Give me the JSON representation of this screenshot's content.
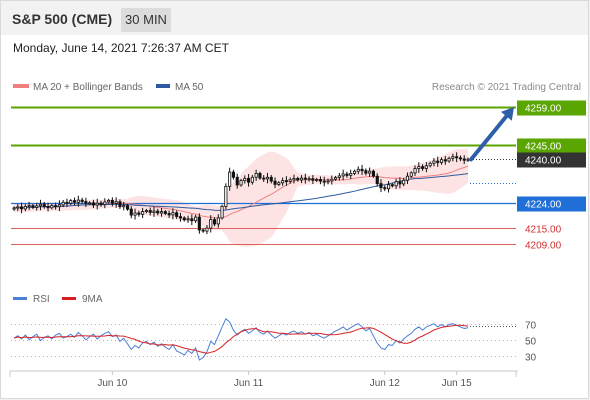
{
  "header": {
    "symbol": "S&P 500 (CME)",
    "timeframe": "30 MIN",
    "datetime": "Monday, June 14, 2021 7:26:37 AM CET"
  },
  "colors": {
    "resistance": "#5aa500",
    "support": "#1f6fd6",
    "ma20": "#f08080",
    "ma50": "#2d5aa0",
    "bollinger": "#fde3e3",
    "candle": "#111111",
    "price_tag": "#333333",
    "target_arrow": "#2f5fa8",
    "rsi": "#4a7fd6",
    "rsi_ma": "#d62020"
  },
  "chart_data": [
    {
      "type": "candlestick",
      "legend": {
        "ma20": "MA 20 + Bollinger Bands",
        "ma50": "MA 50"
      },
      "attribution": "Research © 2021 Trading Central",
      "current_price": 4240.0,
      "levels": [
        {
          "value": 4259.0,
          "label": "4259.00",
          "kind": "resistance"
        },
        {
          "value": 4245.0,
          "label": "4245.00",
          "kind": "resistance"
        },
        {
          "value": 4224.0,
          "label": "4224.00",
          "kind": "pivot"
        },
        {
          "value": 4215.0,
          "label": "4215.00",
          "kind": "support"
        },
        {
          "value": 4209.0,
          "label": "4209.00",
          "kind": "support"
        }
      ],
      "ylim": [
        4196,
        4263
      ],
      "x_ticks": [
        "Jun 10",
        "Jun 11",
        "Jun 12",
        "Jun 15"
      ],
      "closes": [
        4222.2,
        4222.6,
        4221.9,
        4222.8,
        4223.1,
        4222.4,
        4223.0,
        4223.6,
        4222.8,
        4222.3,
        4223.1,
        4222.7,
        4223.4,
        4224.3,
        4223.9,
        4224.9,
        4224.3,
        4225.1,
        4224.6,
        4223.9,
        4224.1,
        4223.3,
        4224.0,
        4223.5,
        4224.4,
        4225.0,
        4223.9,
        4224.5,
        4222.7,
        4223.1,
        4221.8,
        4219.6,
        4220.4,
        4219.9,
        4220.9,
        4221.3,
        4220.6,
        4221.1,
        4220.4,
        4220.9,
        4220.2,
        4219.7,
        4220.5,
        4219.1,
        4218.6,
        4217.9,
        4218.3,
        4217.6,
        4218.9,
        4214.2,
        4213.8,
        4214.9,
        4218.0,
        4216.4,
        4218.6,
        4222.8,
        4230.1,
        4235.3,
        4233.4,
        4230.6,
        4232.2,
        4233.0,
        4231.6,
        4233.4,
        4234.8,
        4233.1,
        4232.8,
        4233.4,
        4232.0,
        4230.8,
        4231.4,
        4232.2,
        4231.9,
        4232.5,
        4233.0,
        4232.4,
        4233.1,
        4232.7,
        4232.9,
        4232.3,
        4232.6,
        4232.0,
        4231.7,
        4232.1,
        4232.7,
        4233.3,
        4233.9,
        4234.6,
        4234.1,
        4234.8,
        4235.6,
        4236.3,
        4235.8,
        4234.9,
        4235.6,
        4233.8,
        4231.1,
        4229.6,
        4229.2,
        4230.7,
        4230.3,
        4231.8,
        4231.0,
        4232.3,
        4233.8,
        4235.0,
        4236.6,
        4237.3,
        4236.6,
        4237.6,
        4238.5,
        4239.3,
        4238.8,
        4239.8,
        4239.3,
        4240.3,
        4240.9,
        4240.5,
        4240.1,
        4239.6,
        4240.0
      ],
      "rsi": {
        "legend": {
          "rsi": "RSI",
          "ma": "9MA"
        },
        "levels": [
          70,
          50,
          30
        ],
        "ylim": [
          20,
          82
        ],
        "values": [
          52,
          55,
          51,
          56,
          50,
          54,
          57,
          49,
          53,
          55,
          51,
          56,
          58,
          52,
          54,
          57,
          53,
          59,
          55,
          50,
          54,
          57,
          51,
          55,
          58,
          60,
          54,
          56,
          48,
          52,
          45,
          38,
          43,
          40,
          46,
          48,
          44,
          47,
          42,
          45,
          41,
          38,
          44,
          36,
          34,
          31,
          37,
          33,
          40,
          25,
          28,
          35,
          48,
          44,
          55,
          66,
          76,
          72,
          62,
          56,
          60,
          63,
          58,
          61,
          65,
          59,
          57,
          61,
          56,
          52,
          55,
          58,
          56,
          59,
          61,
          58,
          60,
          57,
          59,
          55,
          57,
          54,
          52,
          55,
          58,
          61,
          63,
          66,
          62,
          65,
          68,
          70,
          66,
          61,
          64,
          55,
          46,
          40,
          38,
          44,
          43,
          49,
          46,
          51,
          55,
          58,
          63,
          66,
          62,
          66,
          68,
          70,
          66,
          69,
          66,
          69,
          70,
          68,
          66,
          64,
          65
        ]
      }
    }
  ]
}
